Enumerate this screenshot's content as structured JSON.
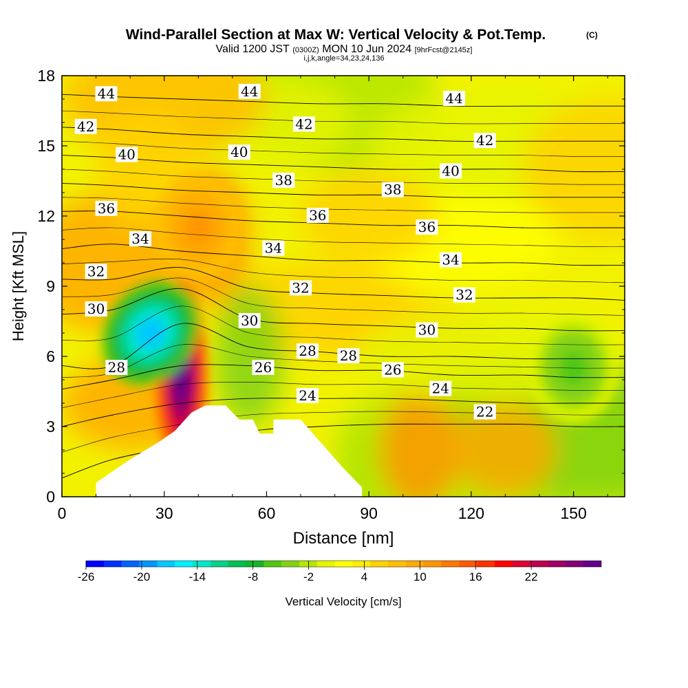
{
  "chart_data": {
    "type": "heatmap",
    "title": "Wind-Parallel Section at Max W: Vertical Velocity & Pot.Temp.",
    "title_mark": "(C)",
    "subtitle": {
      "valid": "Valid 1200 JST",
      "zulu": "(0300Z)",
      "date": "MON 10 Jun 2024",
      "forecast": "[9hrFcst@2145z]"
    },
    "ijk_line": "i,j,k,angle=34,23,24,136",
    "xlabel": "Distance [nm]",
    "ylabel": "Height [Kft MSL]",
    "xlim": [
      0,
      165
    ],
    "ylim": [
      0,
      18
    ],
    "x_ticks": [
      "0",
      "30",
      "60",
      "90",
      "120",
      "150"
    ],
    "y_ticks": [
      "0",
      "3",
      "6",
      "9",
      "12",
      "15",
      "18"
    ],
    "colorbar": {
      "label": "Vertical Velocity [cm/s]",
      "tick_labels": [
        "-26",
        "-20",
        "-14",
        "-8",
        "-2",
        "4",
        "10",
        "16",
        "22"
      ],
      "colors": [
        "#0000ff",
        "#0030ff",
        "#0064ff",
        "#0096ff",
        "#00c8ff",
        "#00f0ff",
        "#00e6c8",
        "#00d28c",
        "#00c050",
        "#14b428",
        "#50c814",
        "#82d214",
        "#b4e600",
        "#e6f500",
        "#ffff00",
        "#ffee00",
        "#ffd200",
        "#ffbe00",
        "#ffaa00",
        "#ff9600",
        "#ff7800",
        "#ff5a00",
        "#ff3200",
        "#ff0000",
        "#dc0032",
        "#be0050",
        "#a00064",
        "#820078",
        "#640087"
      ]
    },
    "terrain_height_kft": [
      [
        0,
        0
      ],
      [
        10,
        0
      ],
      [
        10,
        0.6
      ],
      [
        20,
        1.6
      ],
      [
        28,
        2.3
      ],
      [
        33,
        2.8
      ],
      [
        38,
        3.6
      ],
      [
        42,
        3.9
      ],
      [
        48,
        3.9
      ],
      [
        52,
        3.3
      ],
      [
        56,
        3.3
      ],
      [
        58,
        2.7
      ],
      [
        62,
        2.7
      ],
      [
        62,
        3.3
      ],
      [
        70,
        3.3
      ],
      [
        76,
        2.3
      ],
      [
        82,
        1.3
      ],
      [
        88,
        0.4
      ],
      [
        88,
        0
      ]
    ],
    "isentropes": [
      {
        "theta": 22,
        "heights": [
          0.8,
          1.6,
          2.2,
          2.8,
          3.0,
          3.1,
          3.1,
          3.1,
          3.0,
          3.0
        ]
      },
      {
        "theta": 24,
        "heights": [
          3.0,
          3.5,
          4.0,
          4.2,
          4.2,
          4.2,
          4.1,
          4.0,
          4.0,
          4.0
        ]
      },
      {
        "theta": 26,
        "heights": [
          4.6,
          5.0,
          5.6,
          5.6,
          5.4,
          5.4,
          5.2,
          5.2,
          5.1,
          5.1
        ]
      },
      {
        "theta": 28,
        "heights": [
          5.6,
          5.6,
          7.4,
          6.4,
          6.2,
          6.0,
          6.0,
          5.9,
          5.9,
          5.9
        ]
      },
      {
        "theta": 30,
        "heights": [
          7.8,
          8.0,
          8.9,
          7.6,
          7.4,
          7.3,
          7.2,
          7.2,
          7.1,
          7.1
        ]
      },
      {
        "theta": 32,
        "heights": [
          9.3,
          9.3,
          9.8,
          8.9,
          8.7,
          8.6,
          8.5,
          8.5,
          8.5,
          8.4
        ]
      },
      {
        "theta": 34,
        "heights": [
          10.6,
          10.8,
          10.5,
          10.3,
          10.1,
          10.1,
          10.0,
          10.0,
          9.9,
          9.9
        ]
      },
      {
        "theta": 36,
        "heights": [
          12.2,
          12.2,
          12.0,
          11.8,
          11.7,
          11.6,
          11.6,
          11.5,
          11.5,
          11.5
        ]
      },
      {
        "theta": 38,
        "heights": [
          13.4,
          13.3,
          13.1,
          13.0,
          12.9,
          12.9,
          12.8,
          12.8,
          12.8,
          12.8
        ]
      },
      {
        "theta": 40,
        "heights": [
          14.6,
          14.5,
          14.3,
          14.2,
          14.1,
          14.0,
          14.0,
          14.0,
          13.9,
          13.9
        ]
      },
      {
        "theta": 42,
        "heights": [
          15.8,
          15.7,
          15.5,
          15.4,
          15.3,
          15.3,
          15.2,
          15.2,
          15.2,
          15.2
        ]
      },
      {
        "theta": 44,
        "heights": [
          17.2,
          17.1,
          17.0,
          16.9,
          16.8,
          16.8,
          16.7,
          16.7,
          16.7,
          16.7
        ]
      }
    ],
    "isentrope_x": [
      0,
      15,
      35,
      55,
      75,
      95,
      115,
      135,
      150,
      165
    ],
    "contour_labels": [
      {
        "text": "44",
        "x": 13,
        "y": 17.2
      },
      {
        "text": "44",
        "x": 55,
        "y": 17.3
      },
      {
        "text": "44",
        "x": 115,
        "y": 17.0
      },
      {
        "text": "42",
        "x": 7,
        "y": 15.8
      },
      {
        "text": "42",
        "x": 71,
        "y": 15.9
      },
      {
        "text": "42",
        "x": 124,
        "y": 15.2
      },
      {
        "text": "40",
        "x": 19,
        "y": 14.6
      },
      {
        "text": "40",
        "x": 52,
        "y": 14.7
      },
      {
        "text": "40",
        "x": 114,
        "y": 13.9
      },
      {
        "text": "38",
        "x": 65,
        "y": 13.5
      },
      {
        "text": "38",
        "x": 97,
        "y": 13.1
      },
      {
        "text": "36",
        "x": 13,
        "y": 12.3
      },
      {
        "text": "36",
        "x": 75,
        "y": 12.0
      },
      {
        "text": "36",
        "x": 107,
        "y": 11.5
      },
      {
        "text": "34",
        "x": 23,
        "y": 11.0
      },
      {
        "text": "34",
        "x": 62,
        "y": 10.6
      },
      {
        "text": "34",
        "x": 114,
        "y": 10.1
      },
      {
        "text": "32",
        "x": 10,
        "y": 9.6
      },
      {
        "text": "32",
        "x": 70,
        "y": 8.9
      },
      {
        "text": "32",
        "x": 118,
        "y": 8.6
      },
      {
        "text": "30",
        "x": 10,
        "y": 8.0
      },
      {
        "text": "30",
        "x": 55,
        "y": 7.5
      },
      {
        "text": "30",
        "x": 107,
        "y": 7.1
      },
      {
        "text": "28",
        "x": 16,
        "y": 5.5
      },
      {
        "text": "28",
        "x": 72,
        "y": 6.2
      },
      {
        "text": "28",
        "x": 84,
        "y": 6.0
      },
      {
        "text": "26",
        "x": 59,
        "y": 5.5
      },
      {
        "text": "26",
        "x": 97,
        "y": 5.4
      },
      {
        "text": "24",
        "x": 72,
        "y": 4.3
      },
      {
        "text": "24",
        "x": 111,
        "y": 4.6
      },
      {
        "text": "22",
        "x": 124,
        "y": 3.6
      }
    ],
    "w_features": [
      {
        "type": "updraft",
        "x": 35,
        "y": 5.2,
        "peak_w": 24
      },
      {
        "type": "downdraft",
        "x": 26,
        "y": 7.0,
        "peak_w": -18
      },
      {
        "type": "updraft",
        "x": 40,
        "y": 11.5,
        "peak_w": 8
      },
      {
        "type": "downdraft",
        "x": 150,
        "y": 5.5,
        "peak_w": -8
      }
    ]
  }
}
